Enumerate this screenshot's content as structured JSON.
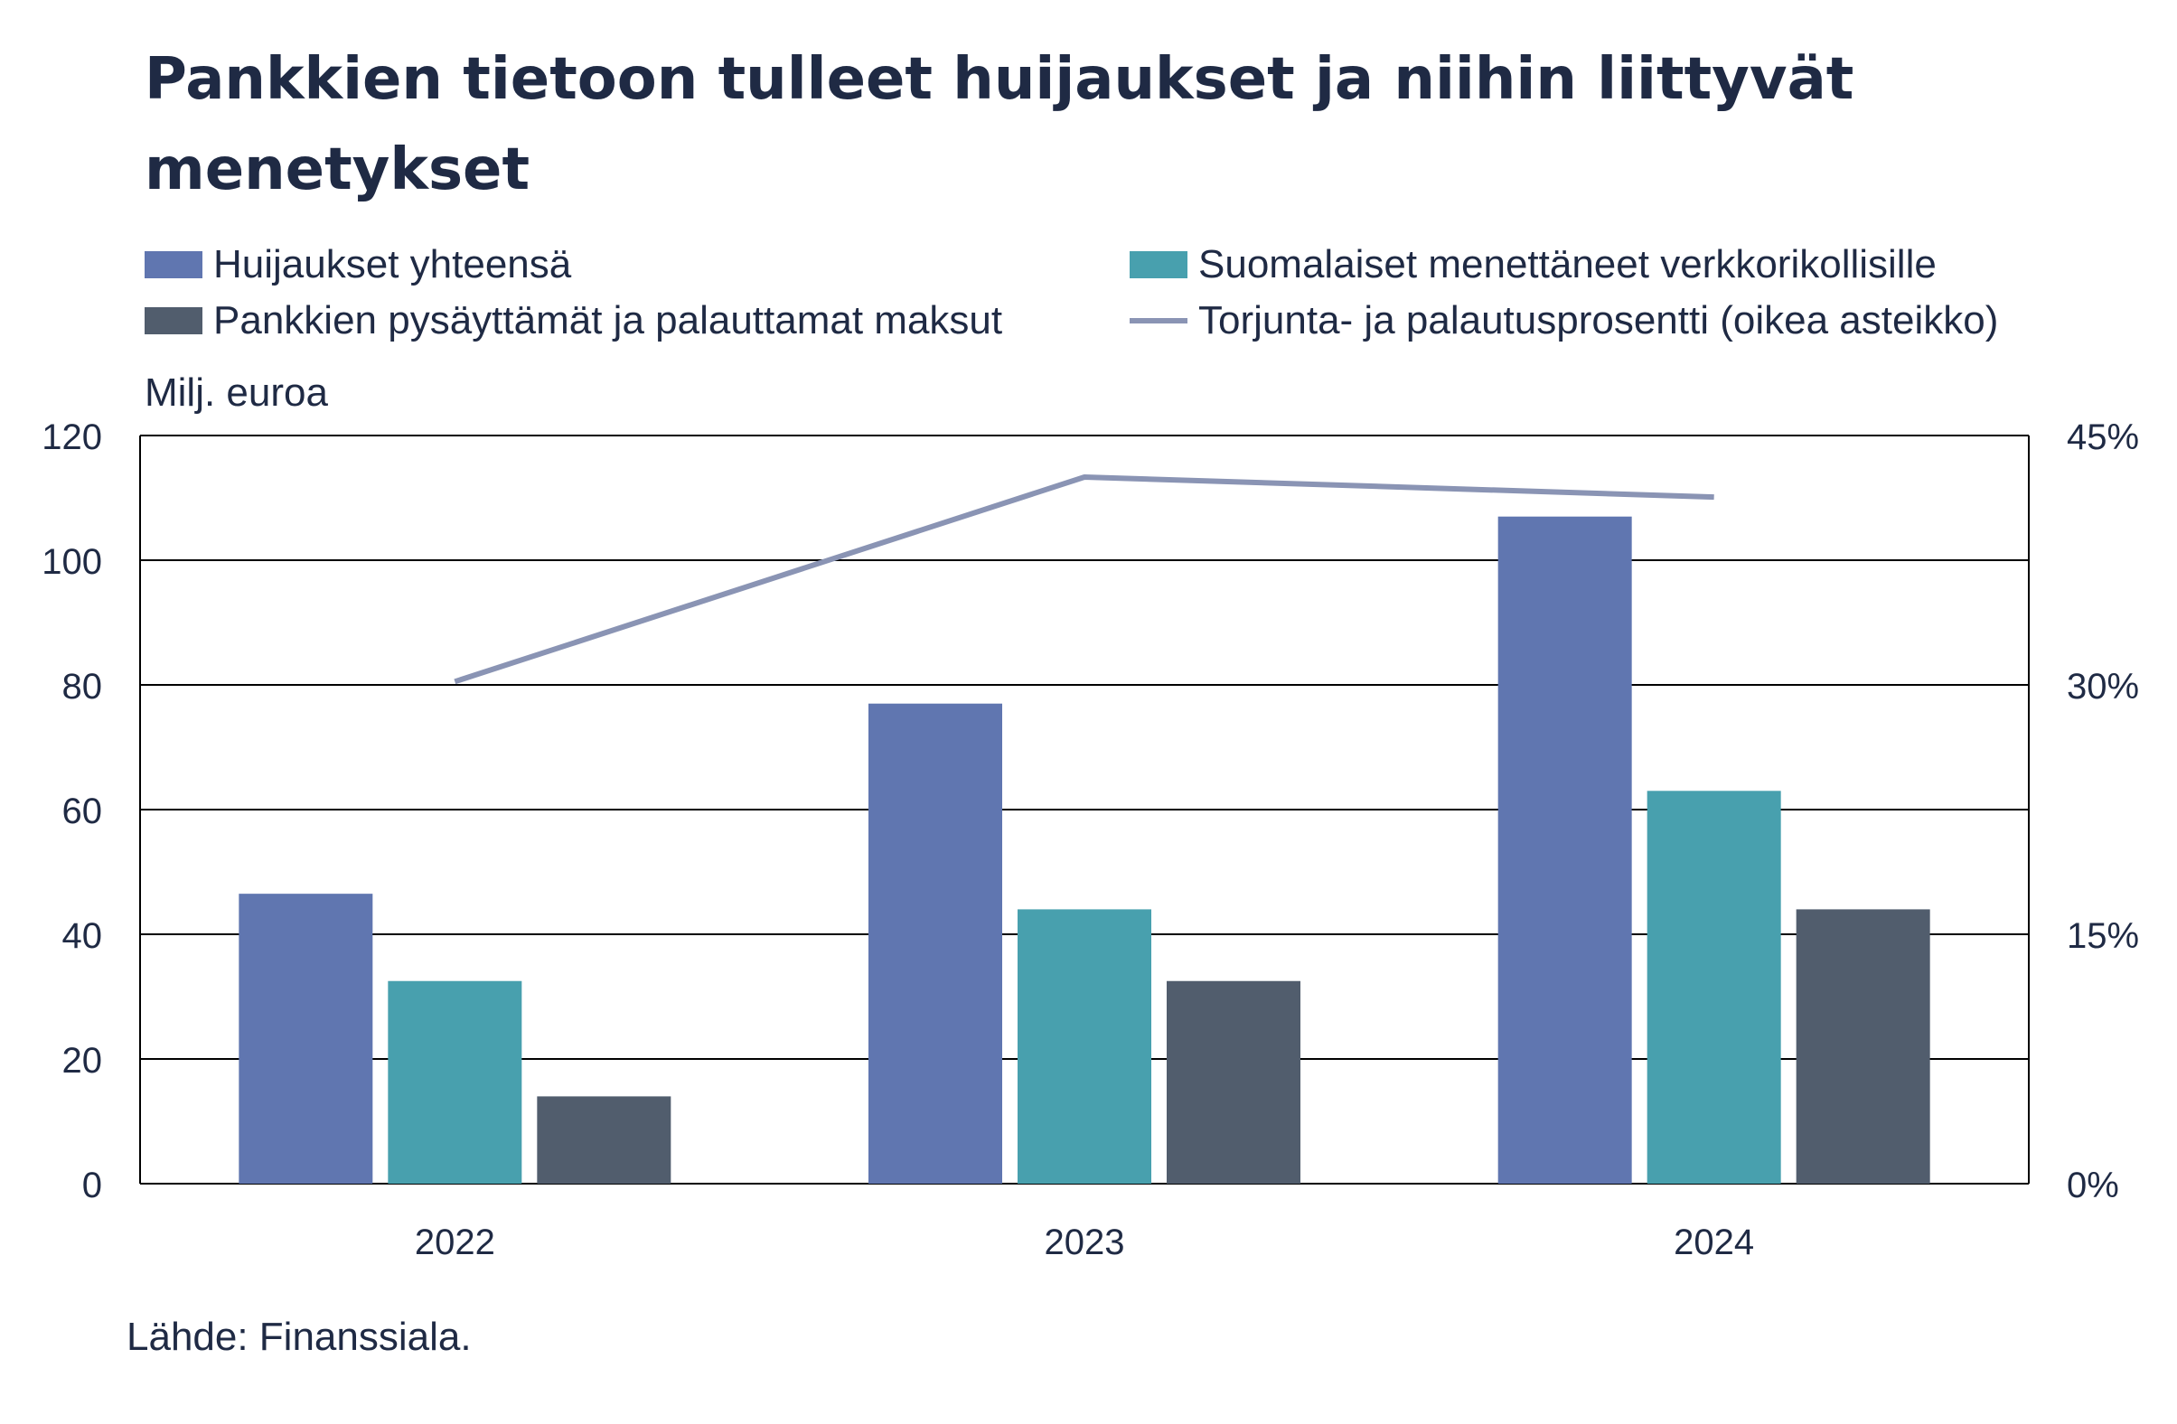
{
  "chart_data": {
    "type": "bar",
    "title": "Pankkien tietoon tulleet huijaukset  ja niihin liittyvät menetykset",
    "ylabel": "Milj. euroa",
    "categories": [
      "2022",
      "2023",
      "2024"
    ],
    "ylim": [
      0,
      120
    ],
    "yticks": [
      "0",
      "20",
      "40",
      "60",
      "80",
      "100",
      "120"
    ],
    "y2lim": [
      0,
      45
    ],
    "y2ticks": [
      "0%",
      "15%",
      "30%",
      "45%"
    ],
    "series": [
      {
        "name": "Huijaukset yhteensä",
        "type": "bar",
        "axis": "left",
        "color": "#6076b0",
        "values": [
          46.5,
          77,
          107
        ]
      },
      {
        "name": "Suomalaiset menettäneet verkkorikollisille",
        "type": "bar",
        "axis": "left",
        "color": "#48a0ae",
        "values": [
          32.5,
          44,
          63
        ]
      },
      {
        "name": "Pankkien pysäyttämät ja palauttamat maksut",
        "type": "bar",
        "axis": "left",
        "color": "#515d6d",
        "values": [
          14,
          32.5,
          44
        ]
      },
      {
        "name": "Torjunta- ja palautusprosentti (oikea asteikko)",
        "type": "line",
        "axis": "right",
        "color": "#8a94b4",
        "values": [
          30.2,
          42.5,
          41.3
        ]
      }
    ],
    "grid": true,
    "legend_position": "top",
    "source": "Lähde: Finanssiala."
  }
}
